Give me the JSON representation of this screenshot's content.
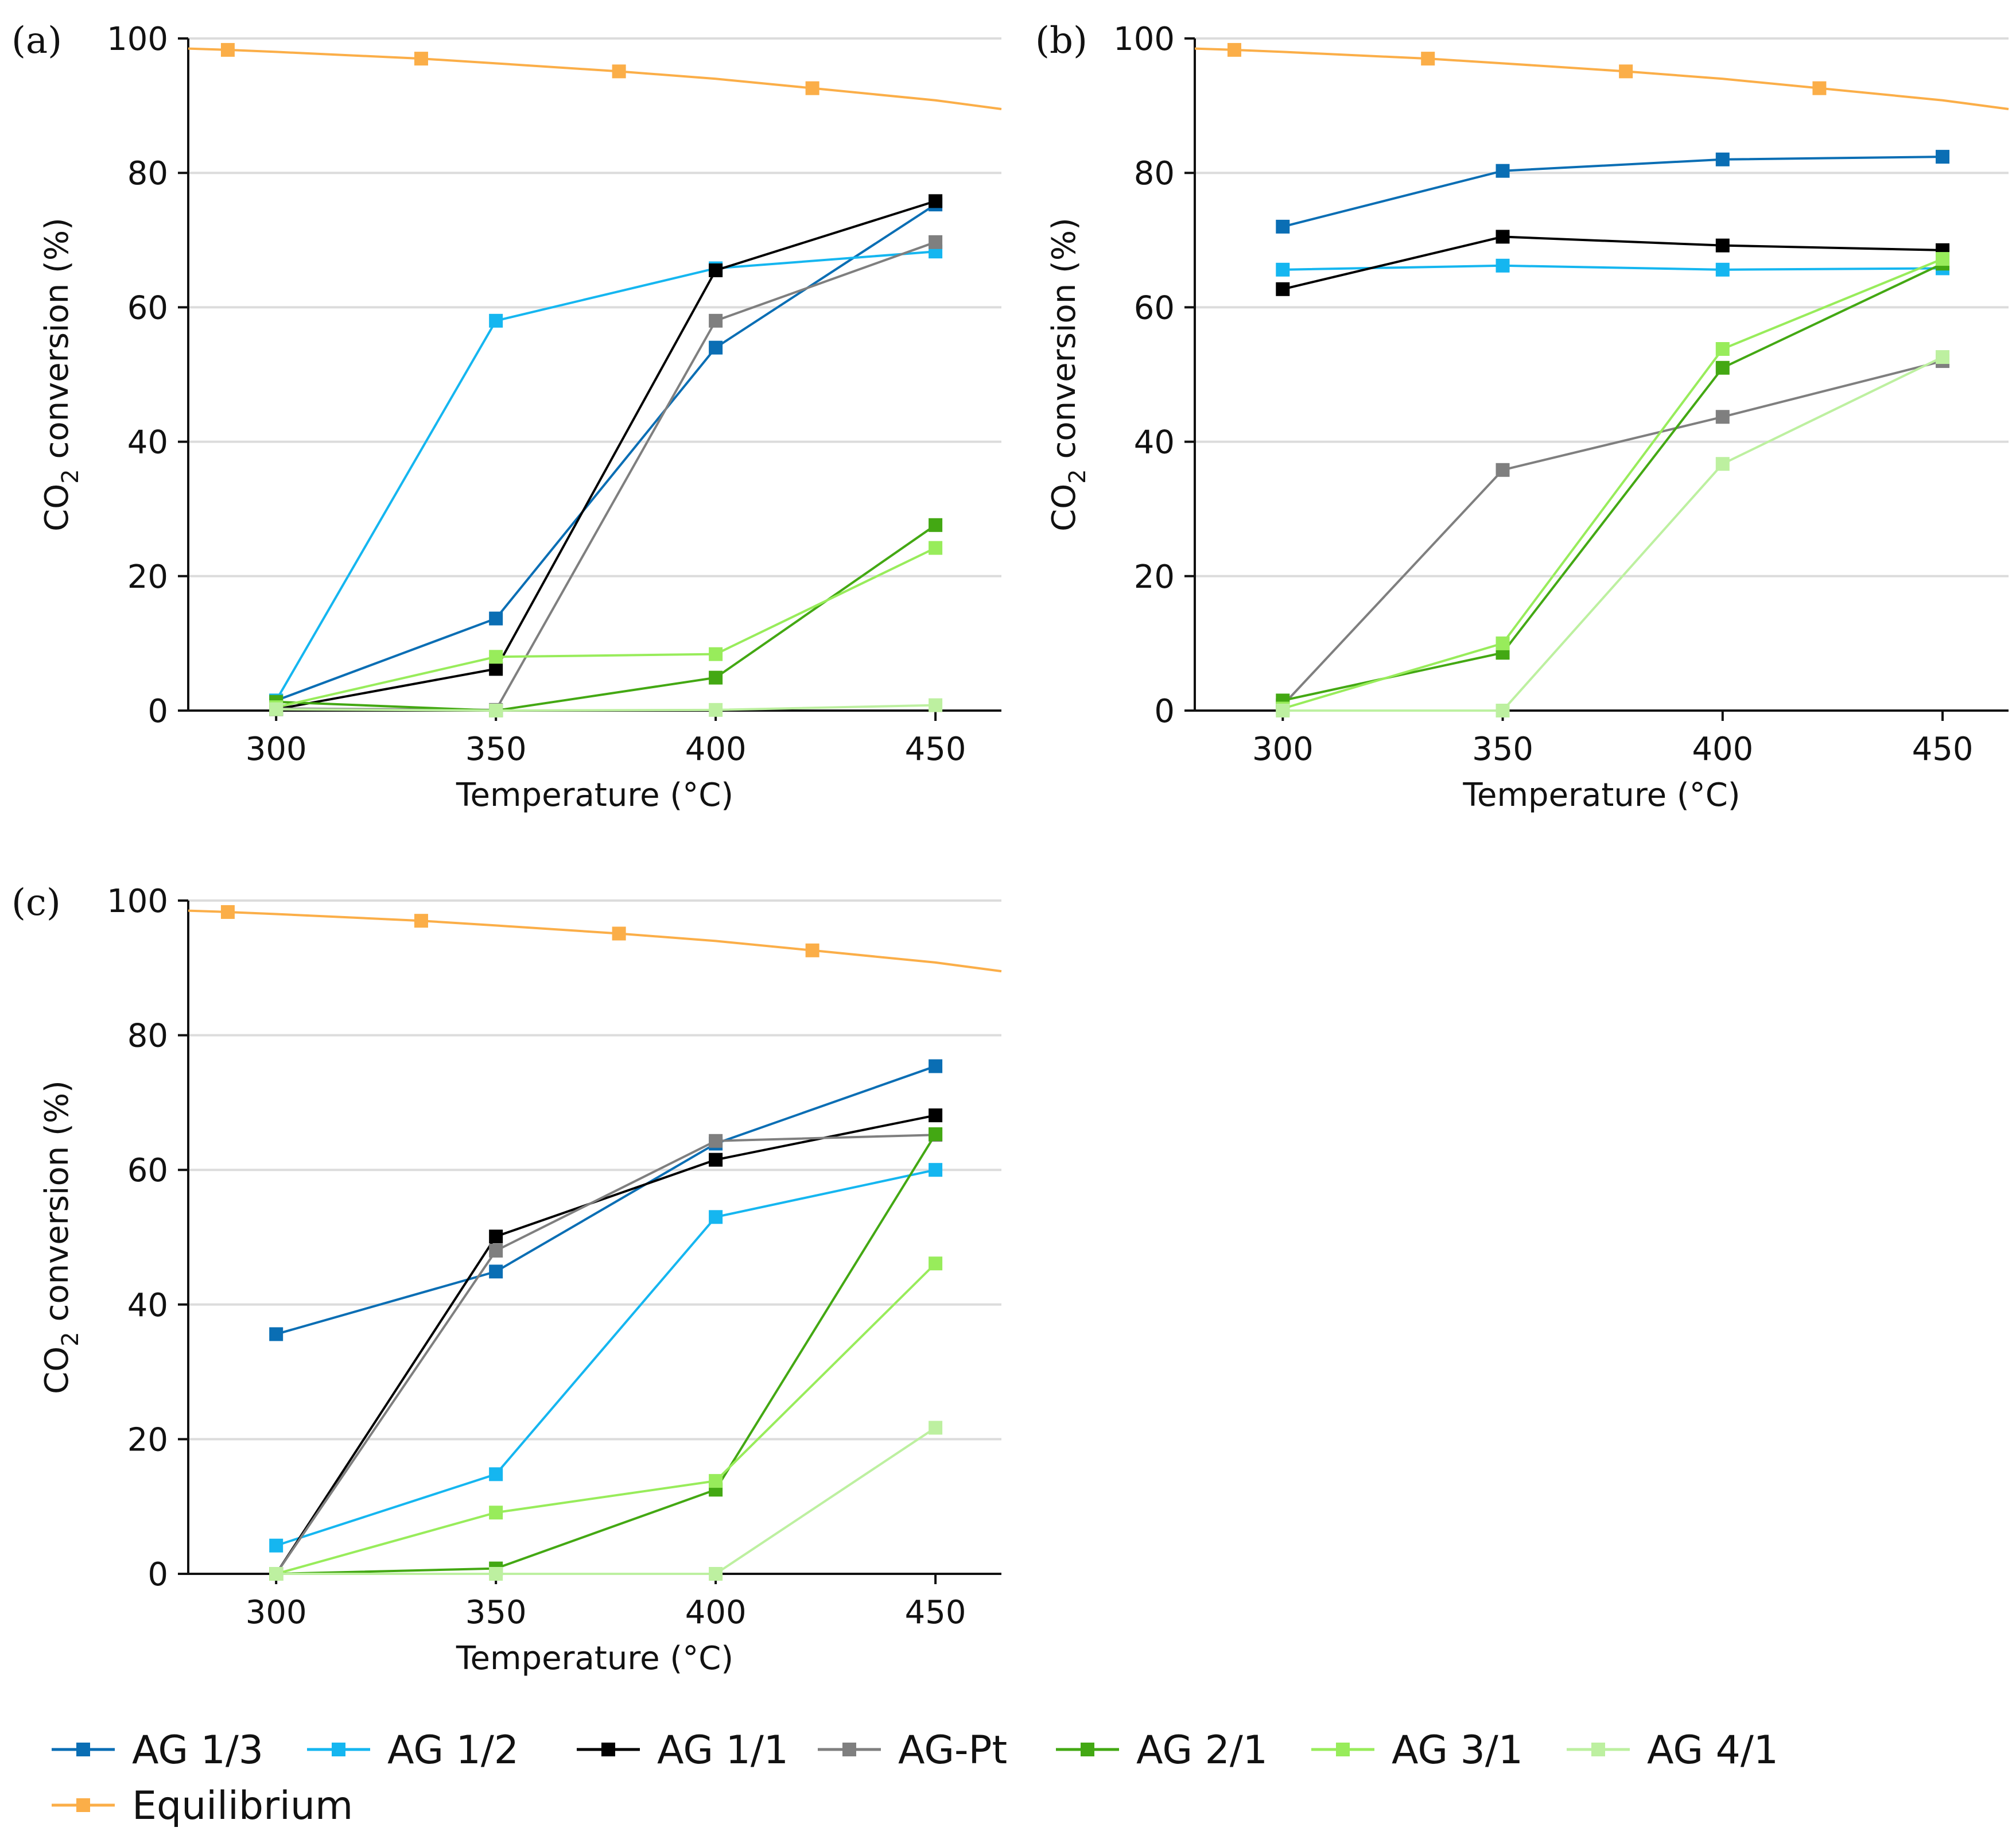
{
  "legend": {
    "entries": [
      {
        "label": "AG 1/3",
        "color": "#0a6eb4"
      },
      {
        "label": "AG 1/2",
        "color": "#15b6f0"
      },
      {
        "label": "AG 1/1",
        "color": "#000000"
      },
      {
        "label": "AG-Pt",
        "color": "#7f7f7f"
      },
      {
        "label": "AG 2/1",
        "color": "#43a813"
      },
      {
        "label": "AG 3/1",
        "color": "#98ec5b"
      },
      {
        "label": "AG 4/1",
        "color": "#bdf0a0"
      },
      {
        "label": "Equilibrium",
        "color": "#fbae48"
      }
    ]
  },
  "chart_data": [
    {
      "panel": "(a)",
      "type": "line",
      "xlabel": "Temperature (°C)",
      "ylabel": "CO2 conversion (%)",
      "xticks": [
        300,
        350,
        400,
        450
      ],
      "yticks": [
        0,
        20,
        40,
        60,
        80,
        100
      ],
      "xlim": [
        280,
        465
      ],
      "ylim": [
        0,
        100
      ],
      "equilibrium": {
        "x": [
          280,
          289,
          300,
          333,
          350,
          378,
          400,
          422,
          450,
          465
        ],
        "y": [
          98.5,
          98.3,
          98.0,
          97.0,
          96.3,
          95.1,
          94.0,
          92.6,
          90.8,
          89.5
        ],
        "marker_x": [
          289,
          333,
          378,
          422
        ]
      },
      "series": [
        {
          "name": "AG 1/3",
          "x": [
            300,
            350,
            400,
            450
          ],
          "values": [
            1.5,
            13.7,
            54.0,
            75.3
          ]
        },
        {
          "name": "AG 1/2",
          "x": [
            300,
            350,
            400,
            450
          ],
          "values": [
            1.5,
            58.0,
            65.8,
            68.3
          ]
        },
        {
          "name": "AG 1/1",
          "x": [
            300,
            350,
            400,
            450
          ],
          "values": [
            0.2,
            6.2,
            65.5,
            75.8
          ]
        },
        {
          "name": "AG-Pt",
          "x": [
            300,
            350,
            400,
            450
          ],
          "values": [
            0.3,
            0.1,
            58.0,
            69.7
          ]
        },
        {
          "name": "AG 2/1",
          "x": [
            300,
            350,
            400,
            450
          ],
          "values": [
            1.3,
            0.0,
            4.9,
            27.6
          ]
        },
        {
          "name": "AG 3/1",
          "x": [
            300,
            350,
            400,
            450
          ],
          "values": [
            0.5,
            8.0,
            8.4,
            24.2
          ]
        },
        {
          "name": "AG 4/1",
          "x": [
            300,
            350,
            400,
            450
          ],
          "values": [
            0.2,
            0.0,
            0.1,
            0.8
          ]
        }
      ]
    },
    {
      "panel": "(b)",
      "type": "line",
      "xlabel": "Temperature (°C)",
      "ylabel": "CO2 conversion (%)",
      "xticks": [
        300,
        350,
        400,
        450
      ],
      "yticks": [
        0,
        20,
        40,
        60,
        80,
        100
      ],
      "xlim": [
        280,
        465
      ],
      "ylim": [
        0,
        100
      ],
      "equilibrium": {
        "x": [
          280,
          289,
          300,
          333,
          350,
          378,
          400,
          422,
          450,
          465
        ],
        "y": [
          98.5,
          98.3,
          98.0,
          97.0,
          96.3,
          95.1,
          94.0,
          92.6,
          90.8,
          89.5
        ],
        "marker_x": [
          289,
          333,
          378,
          422
        ]
      },
      "series": [
        {
          "name": "AG 1/3",
          "x": [
            300,
            350,
            400,
            450
          ],
          "values": [
            72.0,
            80.3,
            82.0,
            82.4
          ]
        },
        {
          "name": "AG 1/2",
          "x": [
            300,
            350,
            400,
            450
          ],
          "values": [
            65.6,
            66.2,
            65.6,
            65.8
          ]
        },
        {
          "name": "AG 1/1",
          "x": [
            300,
            350,
            400,
            450
          ],
          "values": [
            62.7,
            70.5,
            69.2,
            68.5
          ]
        },
        {
          "name": "AG-Pt",
          "x": [
            300,
            350,
            400,
            450
          ],
          "values": [
            0.8,
            35.8,
            43.7,
            52.0
          ]
        },
        {
          "name": "AG 2/1",
          "x": [
            300,
            350,
            400,
            450
          ],
          "values": [
            1.5,
            8.6,
            51.0,
            66.5
          ]
        },
        {
          "name": "AG 3/1",
          "x": [
            300,
            350,
            400,
            450
          ],
          "values": [
            0.3,
            10.0,
            53.8,
            67.2
          ]
        },
        {
          "name": "AG 4/1",
          "x": [
            300,
            350,
            400,
            450
          ],
          "values": [
            0.0,
            0.0,
            36.7,
            52.6
          ]
        }
      ]
    },
    {
      "panel": "(c)",
      "type": "line",
      "xlabel": "Temperature (°C)",
      "ylabel": "CO2 conversion (%)",
      "xticks": [
        300,
        350,
        400,
        450
      ],
      "yticks": [
        0,
        20,
        40,
        60,
        80,
        100
      ],
      "xlim": [
        280,
        465
      ],
      "ylim": [
        0,
        100
      ],
      "equilibrium": {
        "x": [
          280,
          289,
          300,
          333,
          350,
          378,
          400,
          422,
          450,
          465
        ],
        "y": [
          98.5,
          98.3,
          98.0,
          97.0,
          96.3,
          95.1,
          94.0,
          92.6,
          90.8,
          89.5
        ],
        "marker_x": [
          289,
          333,
          378,
          422
        ]
      },
      "series": [
        {
          "name": "AG 1/3",
          "x": [
            300,
            350,
            400,
            450
          ],
          "values": [
            35.6,
            44.9,
            63.9,
            75.4
          ]
        },
        {
          "name": "AG 1/2",
          "x": [
            300,
            350,
            400,
            450
          ],
          "values": [
            4.2,
            14.8,
            53.0,
            60.0
          ]
        },
        {
          "name": "AG 1/1",
          "x": [
            300,
            350,
            400,
            450
          ],
          "values": [
            0.0,
            50.1,
            61.5,
            68.1
          ]
        },
        {
          "name": "AG-Pt",
          "x": [
            300,
            350,
            400,
            450
          ],
          "values": [
            0.0,
            48.0,
            64.3,
            65.2
          ]
        },
        {
          "name": "AG 2/1",
          "x": [
            300,
            350,
            400,
            450
          ],
          "values": [
            0.0,
            0.8,
            12.5,
            65.3
          ]
        },
        {
          "name": "AG 3/1",
          "x": [
            300,
            350,
            400,
            450
          ],
          "values": [
            0.0,
            9.1,
            13.8,
            46.1
          ]
        },
        {
          "name": "AG 4/1",
          "x": [
            300,
            350,
            400,
            450
          ],
          "values": [
            0.0,
            0.0,
            0.0,
            21.7
          ]
        }
      ]
    }
  ]
}
